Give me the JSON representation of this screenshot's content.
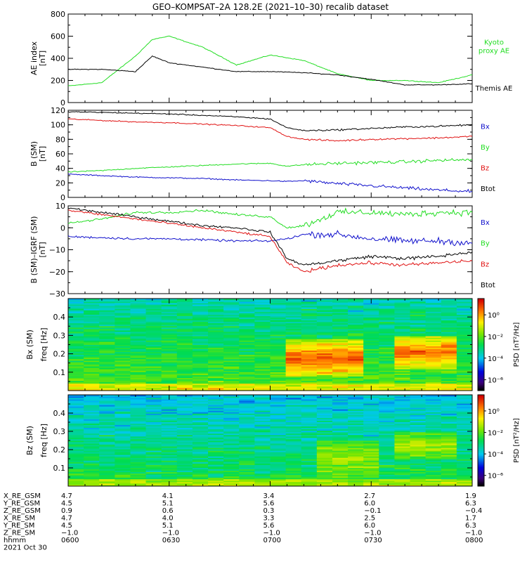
{
  "title": "GEO–KOMPSAT–2A 128.2E (2021–10–30) recalib dataset",
  "colors": {
    "black": "#000000",
    "green": "#22dd22",
    "red": "#e01010",
    "blue": "#1010cc"
  },
  "chart_data": [
    {
      "type": "line",
      "panel": "ae",
      "ylabel": "AE index",
      "yunit": "[nT]",
      "ylim": [
        0,
        800
      ],
      "yticks": [
        0,
        200,
        400,
        600,
        800
      ],
      "x": [
        "0600",
        "0610",
        "0620",
        "0625",
        "0630",
        "0640",
        "0650",
        "0700",
        "0710",
        "0720",
        "0730",
        "0740",
        "0750",
        "0800"
      ],
      "series": [
        {
          "name": "Kyoto proxy AE",
          "label_lines": [
            "Kyoto",
            "proxy AE"
          ],
          "color": "green",
          "values": [
            150,
            180,
            420,
            570,
            600,
            500,
            340,
            430,
            380,
            260,
            200,
            200,
            180,
            250
          ]
        },
        {
          "name": "Themis AE",
          "label_lines": [
            "Themis AE"
          ],
          "color": "black",
          "values": [
            300,
            300,
            280,
            420,
            360,
            320,
            280,
            280,
            270,
            250,
            210,
            160,
            160,
            170
          ]
        }
      ]
    },
    {
      "type": "line",
      "panel": "b",
      "ylabel": "B (SM)",
      "yunit": "[nT]",
      "ylim": [
        0,
        120
      ],
      "yticks": [
        0,
        20,
        40,
        60,
        80,
        100,
        120
      ],
      "x": [
        "0600",
        "0610",
        "0620",
        "0630",
        "0640",
        "0650",
        "0700",
        "0705",
        "0710",
        "0720",
        "0730",
        "0740",
        "0750",
        "0800"
      ],
      "series": [
        {
          "name": "Bx",
          "label_lines": [
            "Bx"
          ],
          "color": "blue",
          "values": [
            32,
            30,
            28,
            27,
            26,
            24,
            23,
            22,
            23,
            19,
            16,
            13,
            10,
            8
          ]
        },
        {
          "name": "By",
          "label_lines": [
            "By"
          ],
          "color": "green",
          "values": [
            35,
            37,
            40,
            42,
            44,
            46,
            47,
            43,
            45,
            47,
            48,
            49,
            51,
            52
          ]
        },
        {
          "name": "Bz",
          "label_lines": [
            "Bz"
          ],
          "color": "red",
          "values": [
            108,
            106,
            104,
            103,
            101,
            99,
            96,
            84,
            80,
            78,
            80,
            81,
            82,
            84
          ]
        },
        {
          "name": "Btot",
          "label_lines": [
            "Btot"
          ],
          "color": "black",
          "values": [
            118,
            117,
            116,
            115,
            113,
            111,
            108,
            96,
            92,
            93,
            95,
            97,
            98,
            100
          ]
        }
      ]
    },
    {
      "type": "line",
      "panel": "db",
      "ylabel": "B (SM)–IGRF (SM)",
      "yunit": "[nT]",
      "ylim": [
        -30,
        10
      ],
      "yticks": [
        -30,
        -20,
        -10,
        0,
        10
      ],
      "x": [
        "0600",
        "0610",
        "0620",
        "0630",
        "0640",
        "0650",
        "0700",
        "0705",
        "0710",
        "0720",
        "0730",
        "0740",
        "0750",
        "0800"
      ],
      "series": [
        {
          "name": "Bx",
          "label_lines": [
            "Bx"
          ],
          "color": "blue",
          "values": [
            -4,
            -4.5,
            -5,
            -5,
            -5.5,
            -6,
            -6,
            -5,
            -3,
            -3,
            -5,
            -6,
            -6,
            -7
          ]
        },
        {
          "name": "By",
          "label_lines": [
            "By"
          ],
          "color": "green",
          "values": [
            2,
            4,
            7,
            7,
            8,
            6,
            5,
            0,
            1,
            7,
            7,
            6,
            7,
            7
          ]
        },
        {
          "name": "Bz",
          "label_lines": [
            "Bz"
          ],
          "color": "red",
          "values": [
            8,
            6,
            4,
            2,
            0,
            -2,
            -4,
            -16,
            -20,
            -17,
            -16,
            -17,
            -16,
            -15
          ]
        },
        {
          "name": "Btot",
          "label_lines": [
            "Btot"
          ],
          "color": "black",
          "values": [
            9,
            7,
            5,
            3,
            1,
            0,
            -2,
            -14,
            -17,
            -15,
            -13,
            -14,
            -13,
            -11
          ]
        }
      ]
    },
    {
      "type": "heatmap",
      "panel": "specx",
      "ylabel": "Bx (SM)",
      "ylabel2": "freq [Hz]",
      "ylim": [
        0,
        0.5
      ],
      "yticks": [
        0.1,
        0.2,
        0.3,
        0.4
      ],
      "colorbar_label": "PSD [nT²/Hz]",
      "colorbar_ticks": [
        "10⁰",
        "10⁻²",
        "10⁻⁴",
        "10⁻⁶"
      ],
      "colorbar_range_log": [
        -7,
        1.5
      ],
      "background_log": [
        -3.5,
        -2
      ],
      "active_regions": [
        {
          "t0": "0706",
          "t1": "0728",
          "f0": 0.08,
          "f1": 0.28,
          "peak_log": 0.8
        },
        {
          "t0": "0735",
          "t1": "0757",
          "f0": 0.12,
          "f1": 0.3,
          "peak_log": 0.6
        }
      ]
    },
    {
      "type": "heatmap",
      "panel": "specz",
      "ylabel": "Bz (SM)",
      "ylabel2": "freq [Hz]",
      "ylim": [
        0,
        0.5
      ],
      "yticks": [
        0.1,
        0.2,
        0.3,
        0.4
      ],
      "colorbar_label": "PSD [nT²/Hz]",
      "colorbar_ticks": [
        "10⁰",
        "10⁻²",
        "10⁻⁴",
        "10⁻⁶"
      ],
      "colorbar_range_log": [
        -7,
        1.5
      ],
      "background_log": [
        -4,
        -2.5
      ],
      "active_regions": [
        {
          "t0": "0712",
          "t1": "0730",
          "f0": 0.05,
          "f1": 0.25,
          "peak_log": -1.5
        },
        {
          "t0": "0738",
          "t1": "0757",
          "f0": 0.15,
          "f1": 0.3,
          "peak_log": -1.2
        }
      ]
    }
  ],
  "time_axis": {
    "ticks": [
      "0600",
      "0630",
      "0700",
      "0730",
      "0800"
    ],
    "minor_step_minutes": 5
  },
  "orbit_table": {
    "rows": [
      {
        "label": "X_RE_GSM",
        "values": [
          "4.7",
          "4.1",
          "3.4",
          "2.7",
          "1.9"
        ]
      },
      {
        "label": "Y_RE_GSM",
        "values": [
          "4.5",
          "5.1",
          "5.6",
          "6.0",
          "6.3"
        ]
      },
      {
        "label": "Z_RE_GSM",
        "values": [
          "0.9",
          "0.6",
          "0.3",
          "−0.1",
          "−0.4"
        ]
      },
      {
        "label": "X_RE_SM",
        "values": [
          "4.7",
          "4.0",
          "3.3",
          "2.5",
          "1.7"
        ]
      },
      {
        "label": "Y_RE_SM",
        "values": [
          "4.5",
          "5.1",
          "5.6",
          "6.0",
          "6.3"
        ]
      },
      {
        "label": "Z_RE_SM",
        "values": [
          "−1.0",
          "−1.0",
          "−1.0",
          "−1.0",
          "−1.0"
        ]
      },
      {
        "label": "hhmm",
        "values": [
          "0600",
          "0630",
          "0700",
          "0730",
          "0800"
        ]
      }
    ],
    "date": "2021 Oct 30"
  }
}
